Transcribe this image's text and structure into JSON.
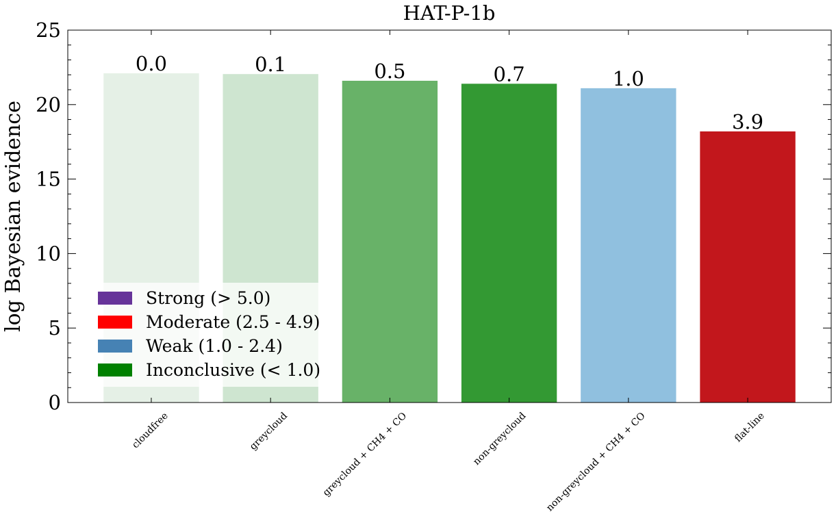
{
  "chart_data": {
    "type": "bar",
    "title": "HAT-P-1b",
    "xlabel": "",
    "ylabel": "log Bayesian evidence",
    "ylim": [
      0,
      25
    ],
    "yticks": [
      0,
      5,
      10,
      15,
      20,
      25
    ],
    "categories": [
      "cloudfree",
      "greycloud",
      "greycloud + CH4 + CO",
      "non-greycloud",
      "non-greycloud + CH4 + CO",
      "flat-line"
    ],
    "values": [
      22.1,
      22.05,
      21.6,
      21.4,
      21.1,
      18.2
    ],
    "bar_labels": [
      "0.0",
      "0.1",
      "0.5",
      "0.7",
      "1.0",
      "3.9"
    ],
    "bar_colors": [
      "#e5f0e6",
      "#cee5d0",
      "#68b268",
      "#339933",
      "#90c0df",
      "#c2171c"
    ],
    "legend": {
      "position": "lower-left",
      "entries": [
        {
          "label": "Strong (> 5.0)",
          "color": "#663399"
        },
        {
          "label": "Moderate (2.5 - 4.9)",
          "color": "#ff0000"
        },
        {
          "label": "Weak (1.0 - 2.4)",
          "color": "#4682b4"
        },
        {
          "label": "Inconclusive (< 1.0)",
          "color": "#008000"
        }
      ]
    },
    "grid": false
  }
}
